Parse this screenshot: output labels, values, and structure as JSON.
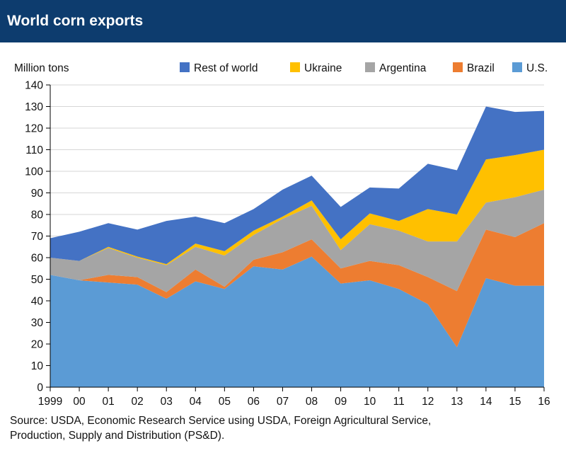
{
  "header": {
    "title": "World corn exports"
  },
  "source": {
    "line1": "Source: USDA, Economic Research Service using USDA, Foreign Agricultural Service,",
    "line2": "Production, Supply and Distribution (PS&D)."
  },
  "chart_data": {
    "type": "area",
    "stacked": true,
    "ylabel": "Million tons",
    "ylim": [
      0,
      140
    ],
    "yticks": [
      0,
      10,
      20,
      30,
      40,
      50,
      60,
      70,
      80,
      90,
      100,
      110,
      120,
      130,
      140
    ],
    "categories": [
      "1999",
      "00",
      "01",
      "02",
      "03",
      "04",
      "05",
      "06",
      "07",
      "08",
      "09",
      "10",
      "11",
      "12",
      "13",
      "14",
      "15",
      "16"
    ],
    "grid": true,
    "legend_position": "top",
    "series": [
      {
        "name": "U.S.",
        "color": "#5b9bd5",
        "values": [
          52,
          49.5,
          48.5,
          47.5,
          41,
          49,
          45.5,
          56,
          54.5,
          60.5,
          48,
          49.5,
          45.5,
          38.5,
          18.5,
          50.5,
          47,
          47
        ]
      },
      {
        "name": "Brazil",
        "color": "#ed7d31",
        "values": [
          0,
          0,
          3.5,
          3.5,
          3,
          5.5,
          1,
          3,
          8,
          8,
          7,
          9,
          11,
          12.5,
          26,
          22.5,
          22.5,
          29
        ]
      },
      {
        "name": "Argentina",
        "color": "#a5a5a5",
        "values": [
          8,
          9,
          12.5,
          9,
          12.5,
          10.5,
          14.5,
          11.5,
          15.5,
          15.5,
          8.5,
          17,
          16,
          16.5,
          23,
          12.5,
          18.5,
          15.5
        ]
      },
      {
        "name": "Ukraine",
        "color": "#ffc000",
        "values": [
          0,
          0,
          0.5,
          0.5,
          0.5,
          1.5,
          2,
          2,
          1,
          2.5,
          5,
          5,
          4.5,
          15,
          12.5,
          20,
          19.5,
          18.5
        ]
      },
      {
        "name": "Rest of world",
        "color": "#4472c4",
        "values": [
          9,
          13.5,
          11,
          12.5,
          20,
          12.5,
          13,
          10,
          12.5,
          11.5,
          15,
          12,
          15,
          21,
          20.5,
          24.5,
          20,
          18
        ]
      }
    ],
    "legend_order": [
      "Rest of world",
      "Ukraine",
      "Argentina",
      "Brazil",
      "U.S."
    ]
  }
}
